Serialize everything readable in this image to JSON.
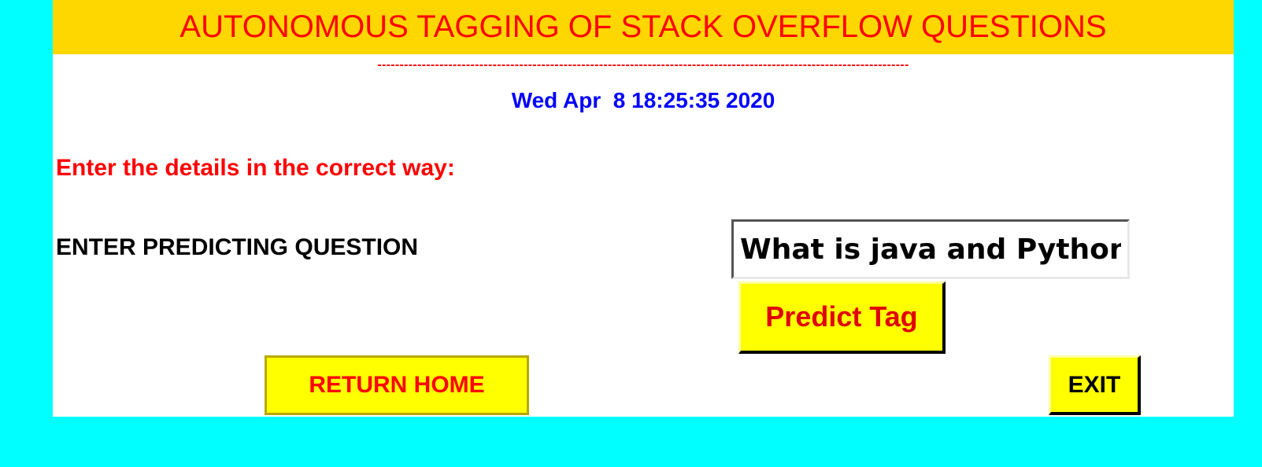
{
  "header": {
    "title": "AUTONOMOUS TAGGING OF STACK OVERFLOW QUESTIONS",
    "separator": "------------------------------------------------------------------------------------------------------------------------"
  },
  "clock": {
    "datetime": "Wed Apr  8 18:25:35 2020"
  },
  "form": {
    "instruction": "Enter the details in the correct way:",
    "question_label": "ENTER PREDICTING QUESTION",
    "question_value": "What is java and Python"
  },
  "buttons": {
    "predict": "Predict Tag",
    "return_home": "RETURN HOME",
    "exit": "EXIT"
  },
  "colors": {
    "background": "#00FFFF",
    "title_bar": "#FFD700",
    "title_text": "#FF0000",
    "datetime_text": "#0000FF",
    "button_bg": "#FFFF00"
  }
}
